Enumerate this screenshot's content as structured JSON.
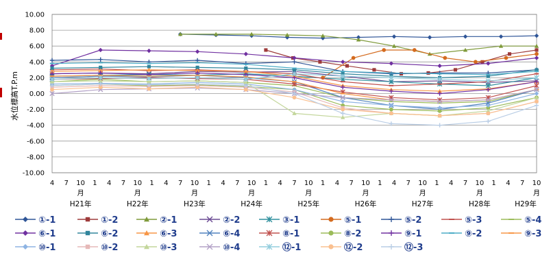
{
  "chart_data": {
    "type": "line",
    "ylabel": "水位標高T.P.m",
    "ylim": [
      -10,
      10
    ],
    "yticks": [
      "10.00",
      "8.00",
      "6.00",
      "4.00",
      "2.00",
      "0.00",
      "-2.00",
      "-4.00",
      "-6.00",
      "-8.00",
      "-10.00"
    ],
    "x_start_month": "2009-04",
    "x_end_month": "2017-10",
    "month_ticks": [
      "4",
      "7",
      "10\n月",
      "1",
      "4",
      "7",
      "10\n月",
      "1",
      "4",
      "7",
      "10\n月",
      "1",
      "4",
      "7",
      "10\n月",
      "1",
      "4",
      "7",
      "10\n月",
      "1",
      "4",
      "7",
      "10\n月",
      "1",
      "4",
      "7",
      "10\n月",
      "1",
      "4",
      "7",
      "10\n月",
      "1",
      "4",
      "7",
      "10\n月"
    ],
    "year_labels": [
      "H21年",
      "H22年",
      "H23年",
      "H24年",
      "H25年",
      "H26年",
      "H27年",
      "H28年",
      "H29年"
    ],
    "grid": "horizontal",
    "legend_position": "bottom",
    "series": [
      {
        "name": "①-1",
        "color": "#2f5597",
        "marker": "diamond",
        "start": "2011-07",
        "values": [
          7.5,
          7.4,
          7.3,
          7.1,
          7.0,
          7.1,
          7.2,
          7.1,
          7.2,
          7.2,
          7.3
        ]
      },
      {
        "name": "①-2",
        "color": "#9e3b3b",
        "marker": "square",
        "start": "2013-01",
        "values": [
          5.5,
          4.5,
          4.0,
          3.5,
          3.0,
          2.5,
          2.6,
          3.0,
          4.0,
          5.0,
          5.5
        ]
      },
      {
        "name": "②-1",
        "color": "#7f9a3a",
        "marker": "triangle",
        "start": "2011-07",
        "values": [
          7.5,
          7.5,
          7.5,
          7.4,
          7.3,
          6.8,
          6.0,
          5.0,
          5.5,
          6.0,
          6.0
        ]
      },
      {
        "name": "②-2",
        "color": "#6a4a93",
        "marker": "x",
        "values": [
          2.5,
          2.6,
          2.5,
          2.8,
          2.7,
          2.8,
          2.2,
          1.5,
          1.6,
          1.4,
          1.6
        ]
      },
      {
        "name": "③-1",
        "color": "#2f8f9d",
        "marker": "star",
        "values": [
          2.2,
          2.3,
          2.4,
          2.3,
          2.5,
          2.2,
          1.8,
          1.5,
          1.2,
          1.0,
          2.0
        ]
      },
      {
        "name": "⑤-1",
        "color": "#d46b1f",
        "marker": "circle",
        "start": "2014-01",
        "values": [
          2.0,
          4.5,
          5.5,
          5.5,
          4.5,
          4.0,
          4.5,
          5.0
        ]
      },
      {
        "name": "⑤-2",
        "color": "#2f5597",
        "marker": "plus",
        "values": [
          4.2,
          4.3,
          4.0,
          4.2,
          3.8,
          4.0,
          2.8,
          2.5,
          2.6,
          2.6,
          3.0
        ]
      },
      {
        "name": "⑤-3",
        "color": "#c0504d",
        "marker": "dash",
        "values": [
          3.0,
          3.1,
          2.9,
          3.0,
          2.8,
          2.5,
          1.5,
          1.0,
          1.2,
          1.5,
          2.5
        ]
      },
      {
        "name": "⑤-4",
        "color": "#9bbb59",
        "marker": "dash",
        "values": [
          1.5,
          1.8,
          1.5,
          1.6,
          1.4,
          1.0,
          -0.5,
          -1.0,
          -1.2,
          -1.0,
          0.5
        ]
      },
      {
        "name": "⑥-1",
        "color": "#7030a0",
        "marker": "diamond",
        "values": [
          3.5,
          5.5,
          5.4,
          5.3,
          5.0,
          4.5,
          4.0,
          3.8,
          3.5,
          3.8,
          4.5
        ]
      },
      {
        "name": "⑥-2",
        "color": "#31859c",
        "marker": "square",
        "values": [
          3.2,
          3.3,
          3.4,
          3.3,
          3.2,
          3.0,
          2.5,
          2.2,
          2.0,
          2.2,
          3.0
        ]
      },
      {
        "name": "⑥-3",
        "color": "#f79646",
        "marker": "triangle",
        "values": [
          2.8,
          2.9,
          3.0,
          2.9,
          2.8,
          2.2,
          1.0,
          0.5,
          0.3,
          0.6,
          1.5
        ]
      },
      {
        "name": "⑥-4",
        "color": "#4f81bd",
        "marker": "x",
        "values": [
          2.0,
          2.2,
          2.1,
          2.3,
          2.0,
          1.5,
          -0.5,
          -1.5,
          -2.0,
          -1.2,
          0.5
        ]
      },
      {
        "name": "⑧-1",
        "color": "#c0504d",
        "marker": "star",
        "values": [
          1.8,
          1.9,
          2.0,
          1.9,
          1.8,
          1.2,
          0.2,
          -0.5,
          -0.8,
          -0.5,
          1.0
        ]
      },
      {
        "name": "⑧-2",
        "color": "#9bbb59",
        "marker": "circle",
        "values": [
          1.0,
          1.2,
          1.0,
          1.1,
          0.9,
          0.5,
          -1.5,
          -2.0,
          -2.2,
          -1.8,
          -0.5
        ]
      },
      {
        "name": "⑨-1",
        "color": "#7030a0",
        "marker": "plus",
        "values": [
          2.5,
          2.6,
          2.4,
          2.6,
          2.4,
          2.0,
          0.8,
          0.3,
          0.0,
          0.5,
          1.5
        ]
      },
      {
        "name": "⑨-2",
        "color": "#4bacc6",
        "marker": "dash",
        "values": [
          3.8,
          3.9,
          3.8,
          3.9,
          3.7,
          3.2,
          2.8,
          2.6,
          2.5,
          2.4,
          2.8
        ]
      },
      {
        "name": "⑨-3",
        "color": "#f79646",
        "marker": "dash",
        "values": [
          2.2,
          2.3,
          2.2,
          2.3,
          2.1,
          1.5,
          0.0,
          -0.8,
          -1.0,
          -0.8,
          0.5
        ]
      },
      {
        "name": "⑩-1",
        "color": "#8eb4e3",
        "marker": "diamond",
        "values": [
          1.2,
          1.3,
          1.2,
          1.4,
          1.2,
          0.5,
          -1.0,
          -1.5,
          -1.8,
          -1.5,
          0.0
        ]
      },
      {
        "name": "⑩-2",
        "color": "#e6b9b8",
        "marker": "square",
        "values": [
          0.8,
          1.0,
          0.9,
          1.0,
          0.8,
          0.2,
          -1.8,
          -2.5,
          -2.8,
          -2.5,
          -1.0
        ]
      },
      {
        "name": "⑩-3",
        "color": "#c3d69b",
        "marker": "triangle",
        "values": [
          1.5,
          1.6,
          1.5,
          1.6,
          1.4,
          -2.5,
          -3.0,
          -2.5,
          -2.8,
          -2.2,
          -0.5
        ]
      },
      {
        "name": "⑩-4",
        "color": "#b3a2c7",
        "marker": "x",
        "values": [
          0.0,
          0.5,
          0.6,
          0.7,
          0.5,
          0.0,
          -0.5,
          -0.8,
          -1.0,
          -0.8,
          0.5
        ]
      },
      {
        "name": "⑫-1",
        "color": "#93cddd",
        "marker": "star",
        "values": [
          1.8,
          2.0,
          1.9,
          2.0,
          1.8,
          2.5,
          2.2,
          2.0,
          1.8,
          1.6,
          2.0
        ]
      },
      {
        "name": "⑫-2",
        "color": "#fac090",
        "marker": "circle",
        "values": [
          0.5,
          0.8,
          0.6,
          0.8,
          0.5,
          -0.5,
          -2.0,
          -2.5,
          -2.8,
          -2.5,
          -1.0
        ]
      },
      {
        "name": "⑫-3",
        "color": "#b9cde5",
        "marker": "plus",
        "values": [
          1.0,
          1.2,
          1.1,
          1.2,
          1.0,
          0.0,
          -2.5,
          -3.8,
          -4.0,
          -3.5,
          -1.5
        ]
      }
    ]
  }
}
